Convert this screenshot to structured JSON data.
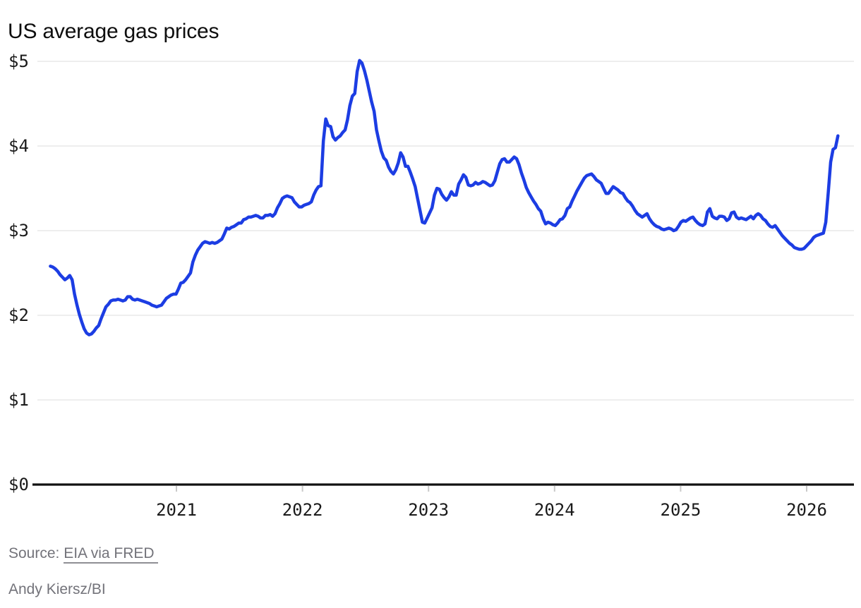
{
  "header": {
    "title": "US average gas prices"
  },
  "footer": {
    "source_label": "Source:",
    "source_link": "EIA via FRED",
    "byline": "Andy Kiersz/BI"
  },
  "chart_data": {
    "type": "line",
    "title": "US average gas prices",
    "xlabel": "",
    "ylabel": "",
    "ylim": [
      0,
      5
    ],
    "xlim": [
      2020.0,
      2026.35
    ],
    "grid": "horizontal",
    "legend": "none",
    "yticks": [
      {
        "value": 0,
        "label": "$0"
      },
      {
        "value": 1,
        "label": "$1"
      },
      {
        "value": 2,
        "label": "$2"
      },
      {
        "value": 3,
        "label": "$3"
      },
      {
        "value": 4,
        "label": "$4"
      },
      {
        "value": 5,
        "label": "$5"
      }
    ],
    "xticks": [
      {
        "value": 2021,
        "label": "2021"
      },
      {
        "value": 2022,
        "label": "2022"
      },
      {
        "value": 2023,
        "label": "2023"
      },
      {
        "value": 2024,
        "label": "2024"
      },
      {
        "value": 2025,
        "label": "2025"
      },
      {
        "value": 2026,
        "label": "2026"
      }
    ],
    "colors": {
      "line": "#1c3de3",
      "grid": "#e8e8e8",
      "axis": "#111111",
      "tick": "#c9c9c9",
      "label": "#1a1a1a",
      "muted_text": "#73737a"
    },
    "series": [
      {
        "name": "US average gas price ($ per gallon)",
        "cadence": "weekly",
        "x_start": 2020.0,
        "values": [
          2.58,
          2.57,
          2.55,
          2.52,
          2.48,
          2.45,
          2.42,
          2.44,
          2.47,
          2.42,
          2.25,
          2.12,
          2.01,
          1.92,
          1.84,
          1.79,
          1.77,
          1.78,
          1.81,
          1.85,
          1.88,
          1.96,
          2.03,
          2.1,
          2.13,
          2.17,
          2.18,
          2.18,
          2.19,
          2.18,
          2.17,
          2.18,
          2.22,
          2.22,
          2.19,
          2.18,
          2.19,
          2.18,
          2.17,
          2.16,
          2.15,
          2.14,
          2.12,
          2.11,
          2.1,
          2.11,
          2.12,
          2.16,
          2.2,
          2.22,
          2.24,
          2.25,
          2.25,
          2.31,
          2.38,
          2.39,
          2.42,
          2.46,
          2.5,
          2.63,
          2.71,
          2.77,
          2.81,
          2.85,
          2.87,
          2.86,
          2.85,
          2.86,
          2.85,
          2.86,
          2.88,
          2.9,
          2.96,
          3.03,
          3.02,
          3.04,
          3.05,
          3.07,
          3.09,
          3.09,
          3.13,
          3.14,
          3.16,
          3.16,
          3.17,
          3.18,
          3.17,
          3.15,
          3.15,
          3.18,
          3.18,
          3.19,
          3.17,
          3.2,
          3.27,
          3.32,
          3.38,
          3.4,
          3.41,
          3.4,
          3.39,
          3.34,
          3.31,
          3.28,
          3.28,
          3.3,
          3.31,
          3.32,
          3.34,
          3.42,
          3.48,
          3.52,
          3.53,
          4.06,
          4.32,
          4.24,
          4.23,
          4.11,
          4.07,
          4.1,
          4.12,
          4.16,
          4.19,
          4.31,
          4.48,
          4.59,
          4.62,
          4.88,
          5.01,
          4.98,
          4.89,
          4.78,
          4.65,
          4.52,
          4.41,
          4.19,
          4.06,
          3.94,
          3.86,
          3.83,
          3.75,
          3.7,
          3.67,
          3.72,
          3.8,
          3.92,
          3.87,
          3.76,
          3.76,
          3.69,
          3.61,
          3.52,
          3.38,
          3.24,
          3.1,
          3.09,
          3.15,
          3.21,
          3.27,
          3.42,
          3.5,
          3.49,
          3.43,
          3.39,
          3.36,
          3.4,
          3.46,
          3.42,
          3.42,
          3.55,
          3.6,
          3.66,
          3.63,
          3.54,
          3.53,
          3.54,
          3.57,
          3.55,
          3.56,
          3.58,
          3.57,
          3.55,
          3.53,
          3.54,
          3.59,
          3.69,
          3.79,
          3.84,
          3.85,
          3.81,
          3.81,
          3.84,
          3.87,
          3.85,
          3.78,
          3.68,
          3.6,
          3.51,
          3.45,
          3.4,
          3.35,
          3.31,
          3.26,
          3.23,
          3.14,
          3.08,
          3.1,
          3.09,
          3.07,
          3.06,
          3.09,
          3.13,
          3.14,
          3.18,
          3.26,
          3.28,
          3.35,
          3.41,
          3.47,
          3.52,
          3.57,
          3.62,
          3.65,
          3.66,
          3.67,
          3.64,
          3.6,
          3.58,
          3.56,
          3.5,
          3.44,
          3.44,
          3.48,
          3.52,
          3.5,
          3.48,
          3.45,
          3.44,
          3.39,
          3.35,
          3.33,
          3.29,
          3.24,
          3.2,
          3.18,
          3.16,
          3.18,
          3.2,
          3.14,
          3.1,
          3.07,
          3.05,
          3.04,
          3.02,
          3.01,
          3.02,
          3.03,
          3.02,
          3.0,
          3.01,
          3.05,
          3.1,
          3.12,
          3.11,
          3.13,
          3.15,
          3.16,
          3.12,
          3.09,
          3.07,
          3.06,
          3.08,
          3.22,
          3.26,
          3.17,
          3.15,
          3.14,
          3.17,
          3.17,
          3.16,
          3.12,
          3.14,
          3.21,
          3.22,
          3.16,
          3.14,
          3.15,
          3.14,
          3.13,
          3.15,
          3.17,
          3.14,
          3.18,
          3.2,
          3.18,
          3.14,
          3.12,
          3.08,
          3.05,
          3.04,
          3.06,
          3.02,
          2.98,
          2.94,
          2.91,
          2.88,
          2.85,
          2.83,
          2.8,
          2.79,
          2.78,
          2.78,
          2.79,
          2.82,
          2.85,
          2.88,
          2.92,
          2.94,
          2.95,
          2.96,
          2.97,
          3.1,
          3.45,
          3.81,
          3.96,
          3.98,
          4.12
        ]
      }
    ]
  }
}
